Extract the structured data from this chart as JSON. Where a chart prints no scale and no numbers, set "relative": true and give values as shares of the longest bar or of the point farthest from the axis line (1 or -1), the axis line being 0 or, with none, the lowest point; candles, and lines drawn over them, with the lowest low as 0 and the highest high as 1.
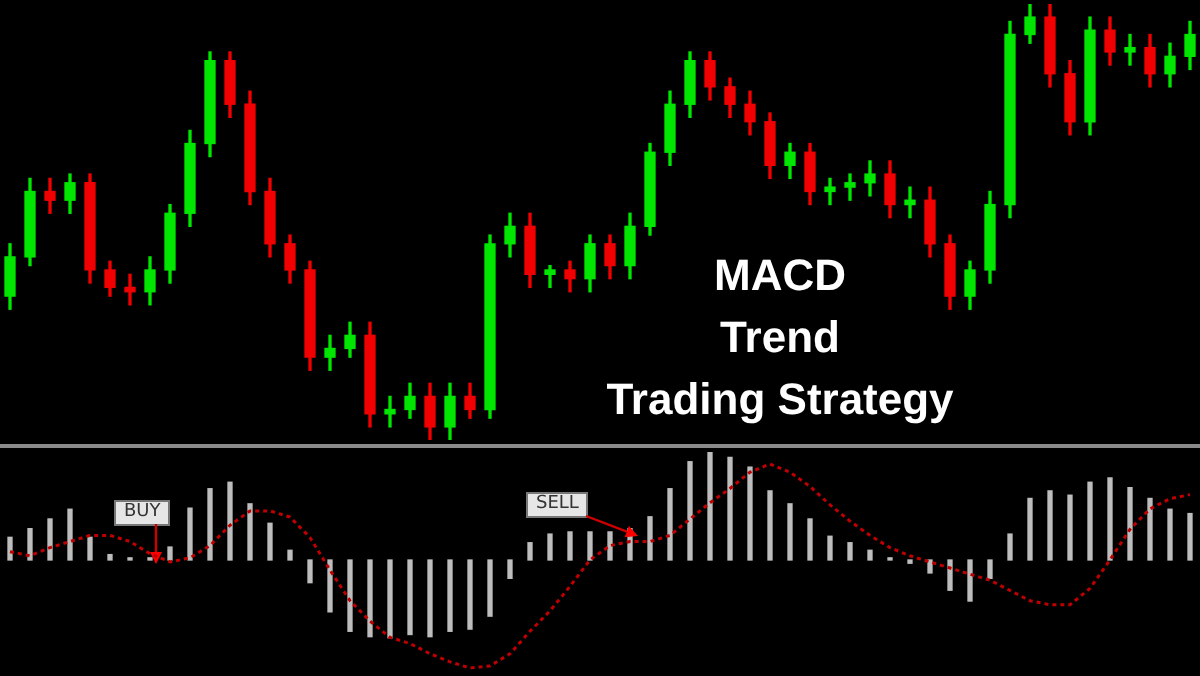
{
  "chart_data": [
    {
      "type": "candlestick",
      "title": "MACD\nTrend\nTrading Strategy",
      "relative": true,
      "categories": [
        null,
        null,
        null,
        null,
        null,
        null,
        null,
        null,
        null,
        null,
        null,
        null,
        null,
        null,
        null,
        null,
        null,
        null,
        null,
        null,
        null,
        null,
        null,
        null,
        null,
        null,
        null,
        null,
        null,
        null,
        null,
        null,
        null,
        null,
        null,
        null,
        null,
        null,
        null,
        null,
        null,
        null,
        null,
        null,
        null,
        null,
        null,
        null,
        null,
        null,
        null,
        null,
        null,
        null,
        null,
        null,
        null,
        null,
        null,
        null
      ],
      "ohlc": [
        [
          0.33,
          0.45,
          0.3,
          0.42
        ],
        [
          0.42,
          0.6,
          0.4,
          0.57
        ],
        [
          0.57,
          0.6,
          0.52,
          0.55
        ],
        [
          0.55,
          0.61,
          0.52,
          0.59
        ],
        [
          0.59,
          0.61,
          0.36,
          0.39
        ],
        [
          0.39,
          0.41,
          0.33,
          0.35
        ],
        [
          0.35,
          0.38,
          0.31,
          0.34
        ],
        [
          0.34,
          0.42,
          0.31,
          0.39
        ],
        [
          0.39,
          0.54,
          0.36,
          0.52
        ],
        [
          0.52,
          0.71,
          0.49,
          0.68
        ],
        [
          0.68,
          0.89,
          0.65,
          0.87
        ],
        [
          0.87,
          0.89,
          0.74,
          0.77
        ],
        [
          0.77,
          0.8,
          0.54,
          0.57
        ],
        [
          0.57,
          0.6,
          0.42,
          0.45
        ],
        [
          0.45,
          0.47,
          0.36,
          0.39
        ],
        [
          0.39,
          0.41,
          0.16,
          0.19
        ],
        [
          0.19,
          0.24,
          0.16,
          0.21
        ],
        [
          0.21,
          0.27,
          0.19,
          0.24
        ],
        [
          0.24,
          0.27,
          0.03,
          0.06
        ],
        [
          0.06,
          0.1,
          0.03,
          0.07
        ],
        [
          0.07,
          0.13,
          0.05,
          0.1
        ],
        [
          0.1,
          0.13,
          0,
          0.03
        ],
        [
          0.03,
          0.13,
          0,
          0.1
        ],
        [
          0.1,
          0.13,
          0.05,
          0.07
        ],
        [
          0.07,
          0.47,
          0.05,
          0.45
        ],
        [
          0.45,
          0.52,
          0.42,
          0.49
        ],
        [
          0.49,
          0.52,
          0.35,
          0.38
        ],
        [
          0.38,
          0.4,
          0.35,
          0.39
        ],
        [
          0.39,
          0.41,
          0.34,
          0.37
        ],
        [
          0.37,
          0.47,
          0.34,
          0.45
        ],
        [
          0.45,
          0.47,
          0.37,
          0.4
        ],
        [
          0.4,
          0.52,
          0.37,
          0.49
        ],
        [
          0.49,
          0.68,
          0.47,
          0.66
        ],
        [
          0.66,
          0.8,
          0.63,
          0.77
        ],
        [
          0.77,
          0.89,
          0.74,
          0.87
        ],
        [
          0.87,
          0.89,
          0.78,
          0.81
        ],
        [
          0.81,
          0.83,
          0.74,
          0.77
        ],
        [
          0.77,
          0.8,
          0.7,
          0.73
        ],
        [
          0.73,
          0.75,
          0.6,
          0.63
        ],
        [
          0.63,
          0.68,
          0.6,
          0.66
        ],
        [
          0.66,
          0.68,
          0.54,
          0.57
        ],
        [
          0.57,
          0.6,
          0.54,
          0.58
        ],
        [
          0.58,
          0.61,
          0.55,
          0.59
        ],
        [
          0.59,
          0.64,
          0.56,
          0.61
        ],
        [
          0.61,
          0.64,
          0.51,
          0.54
        ],
        [
          0.54,
          0.58,
          0.51,
          0.55
        ],
        [
          0.55,
          0.58,
          0.42,
          0.45
        ],
        [
          0.45,
          0.47,
          0.3,
          0.33
        ],
        [
          0.33,
          0.41,
          0.3,
          0.39
        ],
        [
          0.39,
          0.57,
          0.36,
          0.54
        ],
        [
          0.54,
          0.96,
          0.51,
          0.93
        ],
        [
          0.93,
          1,
          0.91,
          0.97
        ],
        [
          0.97,
          1,
          0.81,
          0.84
        ],
        [
          0.84,
          0.87,
          0.7,
          0.73
        ],
        [
          0.73,
          0.97,
          0.7,
          0.94
        ],
        [
          0.94,
          0.97,
          0.86,
          0.89
        ],
        [
          0.89,
          0.93,
          0.86,
          0.9
        ],
        [
          0.9,
          0.93,
          0.81,
          0.84
        ],
        [
          0.84,
          0.91,
          0.81,
          0.88
        ],
        [
          0.88,
          0.96,
          0.85,
          0.93
        ]
      ]
    },
    {
      "type": "bar",
      "relative": true,
      "annotations": [
        "BUY",
        "SELL"
      ],
      "categories": [
        null,
        null,
        null,
        null,
        null,
        null,
        null,
        null,
        null,
        null,
        null,
        null,
        null,
        null,
        null,
        null,
        null,
        null,
        null,
        null,
        null,
        null,
        null,
        null,
        null,
        null,
        null,
        null,
        null,
        null,
        null,
        null,
        null,
        null,
        null,
        null,
        null,
        null,
        null,
        null,
        null,
        null,
        null,
        null,
        null,
        null,
        null,
        null,
        null,
        null,
        null,
        null,
        null,
        null,
        null,
        null,
        null,
        null,
        null,
        null
      ],
      "series": [
        {
          "color": "#bdbdbd",
          "values": [
            0.21,
            0.29,
            0.38,
            0.47,
            0.21,
            0.05,
            0.02,
            0.02,
            0.12,
            0.48,
            0.66,
            0.72,
            0.52,
            0.34,
            0.09,
            -0.21,
            -0.48,
            -0.66,
            -0.71,
            -0.72,
            -0.69,
            -0.71,
            -0.66,
            -0.64,
            -0.52,
            -0.17,
            0.16,
            0.24,
            0.26,
            0.26,
            0.26,
            0.29,
            0.4,
            0.66,
            0.91,
            1,
            0.95,
            0.86,
            0.64,
            0.52,
            0.38,
            0.22,
            0.16,
            0.09,
            0.02,
            -0.03,
            -0.12,
            -0.28,
            -0.38,
            -0.17,
            0.24,
            0.57,
            0.64,
            0.6,
            0.72,
            0.76,
            0.67,
            0.57,
            0.47,
            0.43
          ]
        }
      ]
    },
    {
      "type": "line",
      "relative": true,
      "line_style": "dotted",
      "categories": [
        null,
        null,
        null,
        null,
        null,
        null,
        null,
        null,
        null,
        null,
        null,
        null,
        null,
        null,
        null,
        null,
        null,
        null,
        null,
        null,
        null,
        null,
        null,
        null,
        null,
        null,
        null,
        null,
        null,
        null,
        null,
        null,
        null,
        null,
        null,
        null,
        null,
        null,
        null,
        null,
        null,
        null,
        null,
        null,
        null,
        null,
        null,
        null,
        null,
        null,
        null,
        null,
        null,
        null,
        null,
        null,
        null,
        null,
        null,
        null
      ],
      "series": [
        {
          "color": "#c00000",
          "values": [
            0.57,
            0.55,
            0.59,
            0.62,
            0.65,
            0.65,
            0.62,
            0.56,
            0.52,
            0.54,
            0.6,
            0.7,
            0.77,
            0.77,
            0.74,
            0.64,
            0.48,
            0.33,
            0.23,
            0.15,
            0.12,
            0.07,
            0.03,
            0,
            0.01,
            0.07,
            0.18,
            0.28,
            0.4,
            0.53,
            0.6,
            0.62,
            0.62,
            0.65,
            0.73,
            0.81,
            0.88,
            0.96,
            1,
            0.96,
            0.89,
            0.8,
            0.72,
            0.65,
            0.59,
            0.55,
            0.52,
            0.49,
            0.46,
            0.43,
            0.38,
            0.33,
            0.31,
            0.31,
            0.39,
            0.53,
            0.68,
            0.78,
            0.83,
            0.85
          ]
        }
      ]
    }
  ]
}
